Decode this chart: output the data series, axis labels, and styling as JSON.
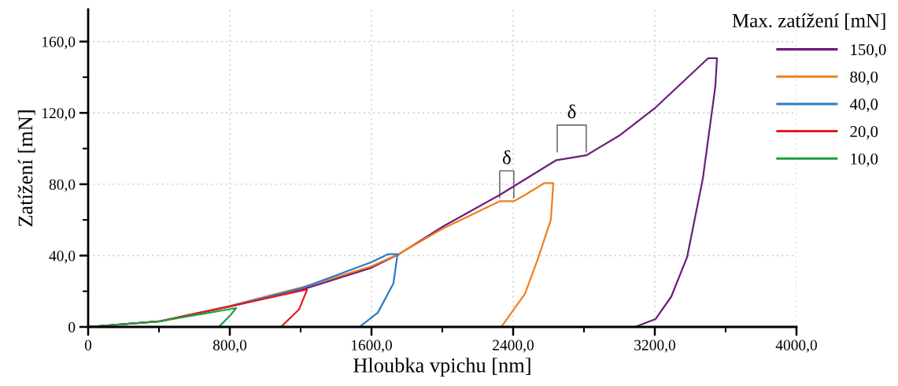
{
  "chart_data": {
    "type": "line",
    "xlabel": "Hloubka vpichu [nm]",
    "ylabel": "Zatížení [mN]",
    "legend_title": "Max. zatížení [mN]",
    "legend": "top right",
    "grid": true,
    "line_style": "solid",
    "marker": "none",
    "xlim": [
      0,
      4000
    ],
    "ylim": [
      0,
      178
    ],
    "xticks": [
      0,
      {
        "value": 400,
        "label": null
      },
      {
        "value": 800,
        "label": "800,0"
      },
      {
        "value": 1200,
        "label": null
      },
      {
        "value": 1600,
        "label": "1600,0"
      },
      {
        "value": 2000,
        "label": null
      },
      {
        "value": 2400,
        "label": "2400,0"
      },
      {
        "value": 2800,
        "label": null
      },
      {
        "value": 3200,
        "label": "3200,0"
      },
      {
        "value": 3600,
        "label": null
      },
      {
        "value": 4000,
        "label": "4000,0"
      }
    ],
    "yticks": [
      {
        "value": 0,
        "label": "0"
      },
      {
        "value": 20,
        "label": null
      },
      {
        "value": 40,
        "label": "40,0"
      },
      {
        "value": 60,
        "label": null
      },
      {
        "value": 80,
        "label": "80,0"
      },
      {
        "value": 100,
        "label": null
      },
      {
        "value": 120,
        "label": "120,0"
      },
      {
        "value": 140,
        "label": null
      },
      {
        "value": 160,
        "label": "160,0"
      }
    ],
    "annotations": [
      {
        "text": "δ",
        "x": 2404,
        "y": 70.5
      },
      {
        "text": "δ",
        "x": 2813,
        "y": 96.2
      }
    ],
    "series": [
      {
        "name": "150,0",
        "color": "#6a1f7a",
        "x": [
          0,
          404,
          804,
          1204,
          1600,
          1756,
          2004,
          2324,
          2644,
          2813,
          3000,
          3204,
          3502,
          3551,
          3542,
          3471,
          3382,
          3293,
          3204,
          3089,
          2350
        ],
        "values": [
          0,
          3.1,
          11.5,
          20.8,
          33.2,
          40.8,
          56.3,
          74,
          93.5,
          96.2,
          107.3,
          123,
          150.7,
          150.7,
          135,
          83,
          39,
          17,
          4.4,
          0,
          0
        ]
      },
      {
        "name": "80,0",
        "color": "#f07f1e",
        "x": [
          0,
          404,
          800,
          1200,
          1600,
          1756,
          2000,
          2324,
          2404,
          2467,
          2578,
          2627,
          2613,
          2538,
          2467,
          2333
        ],
        "values": [
          0,
          3.2,
          11.8,
          22,
          34,
          41,
          55,
          70.5,
          70.5,
          74,
          80.7,
          80.7,
          60,
          37.7,
          18.6,
          0
        ]
      },
      {
        "name": "40,0",
        "color": "#2a7bc8",
        "x": [
          0,
          404,
          800,
          1200,
          1600,
          1693,
          1747,
          1724,
          1636,
          1533
        ],
        "values": [
          0,
          3.2,
          11.6,
          21.5,
          36.3,
          40.8,
          40.8,
          24.4,
          8,
          0
        ]
      },
      {
        "name": "20,0",
        "color": "#e8191f",
        "x": [
          0,
          404,
          800,
          1227,
          1236,
          1191,
          1089
        ],
        "values": [
          0,
          3.1,
          11.5,
          20.8,
          20.8,
          9.8,
          0
        ]
      },
      {
        "name": "10,0",
        "color": "#1fa040",
        "x": [
          0,
          404,
          836,
          804,
          738
        ],
        "values": [
          0,
          3.1,
          10.6,
          6.6,
          0
        ]
      }
    ]
  }
}
